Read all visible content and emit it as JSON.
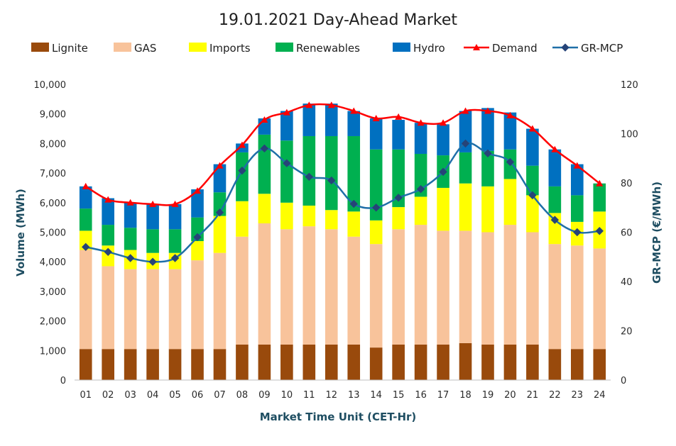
{
  "chart_data": {
    "type": "bar",
    "title": "19.01.2021  Day-Ahead Market",
    "xlabel": "Market Time Unit (CET-Hr)",
    "ylabel": "Volume (MWh)",
    "y2label": "GR-MCP (€/MWh)",
    "ylim": [
      0,
      10000
    ],
    "y2lim": [
      0,
      120
    ],
    "yticks": [
      "0",
      "1,000",
      "2,000",
      "3,000",
      "4,000",
      "5,000",
      "6,000",
      "7,000",
      "8,000",
      "9,000",
      "10,000"
    ],
    "y2ticks": [
      "0",
      "20",
      "40",
      "60",
      "80",
      "100",
      "120"
    ],
    "categories": [
      "01",
      "02",
      "03",
      "04",
      "05",
      "06",
      "07",
      "08",
      "09",
      "10",
      "11",
      "12",
      "13",
      "14",
      "15",
      "16",
      "17",
      "18",
      "19",
      "20",
      "21",
      "22",
      "23",
      "24"
    ],
    "stacked_series": [
      {
        "name": "Lignite",
        "color": "#994a0c",
        "values": [
          1050,
          1050,
          1050,
          1050,
          1050,
          1050,
          1050,
          1200,
          1200,
          1200,
          1200,
          1200,
          1200,
          1100,
          1200,
          1200,
          1200,
          1250,
          1200,
          1200,
          1200,
          1050,
          1050,
          1050
        ]
      },
      {
        "name": "GAS",
        "color": "#f8c39b",
        "values": [
          3350,
          2800,
          2700,
          2700,
          2700,
          3000,
          3250,
          3650,
          4100,
          3900,
          4000,
          3900,
          3650,
          3500,
          3900,
          4050,
          3850,
          3800,
          3800,
          4050,
          3800,
          3550,
          3500,
          3400
        ]
      },
      {
        "name": "Imports",
        "color": "#ffff00",
        "values": [
          650,
          700,
          650,
          550,
          550,
          650,
          1250,
          1200,
          1000,
          900,
          700,
          650,
          850,
          800,
          750,
          950,
          1450,
          1600,
          1550,
          1550,
          1250,
          1050,
          800,
          1250
        ]
      },
      {
        "name": "Renewables",
        "color": "#00b050",
        "values": [
          750,
          700,
          750,
          800,
          800,
          800,
          800,
          1650,
          2000,
          2100,
          2350,
          2500,
          2550,
          2400,
          1950,
          1450,
          1100,
          1050,
          1200,
          1000,
          1000,
          900,
          900,
          950
        ]
      },
      {
        "name": "Hydro",
        "color": "#0070c0",
        "values": [
          750,
          900,
          850,
          850,
          850,
          950,
          950,
          300,
          550,
          1000,
          1100,
          1100,
          850,
          1050,
          1000,
          1050,
          1050,
          1400,
          1450,
          1250,
          1250,
          1250,
          1050,
          0
        ]
      }
    ],
    "line_series": [
      {
        "name": "Demand",
        "color": "#ff0000",
        "marker": "triangle",
        "axis": "left",
        "values": [
          6550,
          6100,
          6000,
          5950,
          5950,
          6400,
          7250,
          7950,
          8800,
          9050,
          9300,
          9300,
          9100,
          8850,
          8900,
          8700,
          8700,
          9100,
          9100,
          8950,
          8500,
          7800,
          7250,
          6650
        ]
      },
      {
        "name": "GR-MCP",
        "color": "#1f6fa8",
        "marker": "diamond",
        "axis": "right",
        "values": [
          54,
          52,
          49.5,
          48,
          49.5,
          58,
          68,
          85,
          94,
          88,
          82.5,
          81,
          71.5,
          70,
          74,
          77.5,
          84.5,
          96,
          92,
          88.5,
          75,
          65,
          60,
          60.5
        ]
      }
    ],
    "legend": {
      "position": "top"
    },
    "grid": false
  }
}
